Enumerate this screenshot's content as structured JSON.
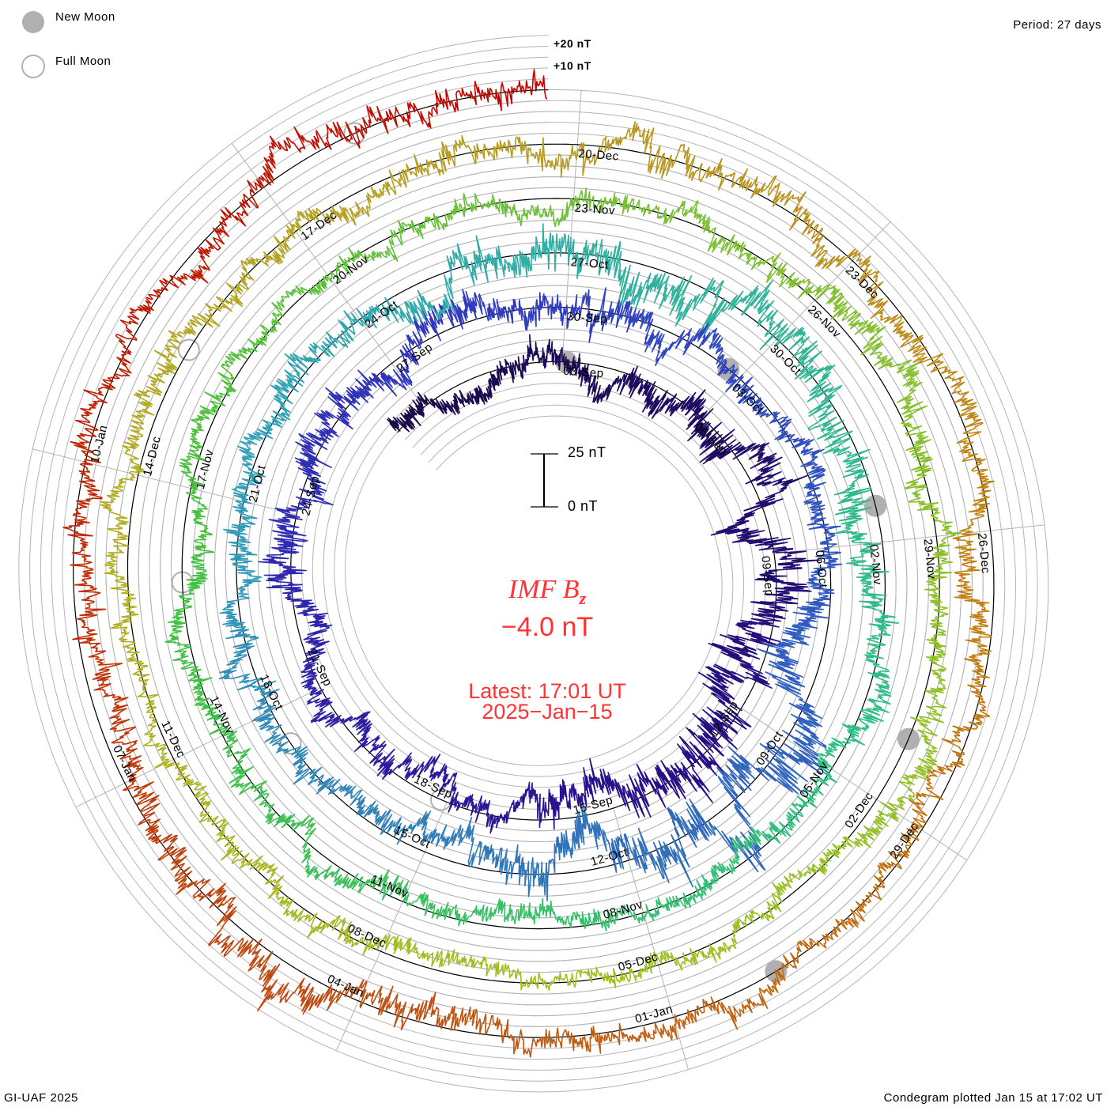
{
  "legend": {
    "new_moon": "New Moon",
    "full_moon": "Full Moon"
  },
  "period_label": "Period: 27 days",
  "footer_left": "GI-UAF 2025",
  "footer_right": "Condegram plotted Jan 15 at 17:02 UT",
  "grid_labels": {
    "plus20": "+20 nT",
    "plus10": "+10 nT"
  },
  "center": {
    "title": "IMF B",
    "subscript": "z",
    "value": "−4.0 nT",
    "latest": "Latest: 17:01 UT",
    "date": "2025−Jan−15",
    "scale_top": "25 nT",
    "scale_bottom": "0 nT"
  },
  "colors": {
    "new_moon": "#b0b0b0",
    "full_moon": "#b0b0b0",
    "grid": "#b4b4b4",
    "baseline": "#000000",
    "center_text": "#ff3333"
  },
  "chart_data": {
    "type": "line",
    "layout": "spiral condegram",
    "title": "IMF Bz",
    "units": "nT",
    "period_days": 27,
    "time_unit": "days relative to 30-Sep",
    "start_day": -30.75,
    "end_day": 107.71,
    "latest_value": -4.0,
    "grid_step_nT": 5,
    "scale_bar_nT": [
      0,
      25
    ],
    "amplitude_bin_days": 3,
    "approx_amplitude_nT": [
      5,
      6,
      8,
      9,
      12,
      7,
      5,
      6,
      8,
      6,
      8,
      5,
      6,
      14,
      9,
      5,
      6,
      5,
      6,
      10,
      8,
      6,
      5,
      4,
      5,
      5,
      4,
      4,
      5,
      6,
      5,
      4,
      4,
      5,
      4,
      5,
      5,
      7,
      5,
      5,
      4,
      5,
      8,
      6,
      5,
      6,
      6
    ],
    "color_stops": [
      {
        "day": -30.75,
        "color": "#1a0a48"
      },
      {
        "day": -15,
        "color": "#2a1090"
      },
      {
        "day": -5,
        "color": "#3030b8"
      },
      {
        "day": 0,
        "color": "#3040c0"
      },
      {
        "day": 8,
        "color": "#3060c0"
      },
      {
        "day": 15,
        "color": "#3080b8"
      },
      {
        "day": 21,
        "color": "#30a0b8"
      },
      {
        "day": 27,
        "color": "#30b0a0"
      },
      {
        "day": 36,
        "color": "#30c080"
      },
      {
        "day": 46,
        "color": "#40c040"
      },
      {
        "day": 56,
        "color": "#80c030"
      },
      {
        "day": 66,
        "color": "#a0c020"
      },
      {
        "day": 73,
        "color": "#b0b020"
      },
      {
        "day": 81,
        "color": "#b89820"
      },
      {
        "day": 87,
        "color": "#c08010"
      },
      {
        "day": 95,
        "color": "#c05010"
      },
      {
        "day": 102,
        "color": "#c02000"
      },
      {
        "day": 107.71,
        "color": "#c00000"
      }
    ],
    "date_labels": [
      "03-Sep",
      "06-Sep",
      "09-Sep",
      "12-Sep",
      "15-Sep",
      "18-Sep",
      "21-Sep",
      "24-Sep",
      "27-Sep",
      "30-Sep",
      "03-Oct",
      "06-Oct",
      "09-Oct",
      "12-Oct",
      "15-Oct",
      "18-Oct",
      "21-Oct",
      "24-Oct",
      "27-Oct",
      "30-Oct",
      "02-Nov",
      "05-Nov",
      "08-Nov",
      "11-Nov",
      "14-Nov",
      "17-Nov",
      "20-Nov",
      "23-Nov",
      "26-Nov",
      "29-Nov",
      "02-Dec",
      "05-Dec",
      "08-Dec",
      "11-Dec",
      "14-Dec",
      "17-Dec",
      "20-Dec",
      "23-Dec",
      "26-Dec",
      "29-Dec",
      "01-Jan",
      "04-Jan",
      "07-Jan",
      "10-Jan"
    ],
    "first_label_day": -27,
    "label_step_days": 3,
    "new_moon_days": [
      -26.92,
      2.78,
      32.53,
      62.26,
      91.94
    ],
    "full_moon_days": [
      -11.89,
      17.48,
      46.89,
      76.38,
      105.94
    ]
  }
}
